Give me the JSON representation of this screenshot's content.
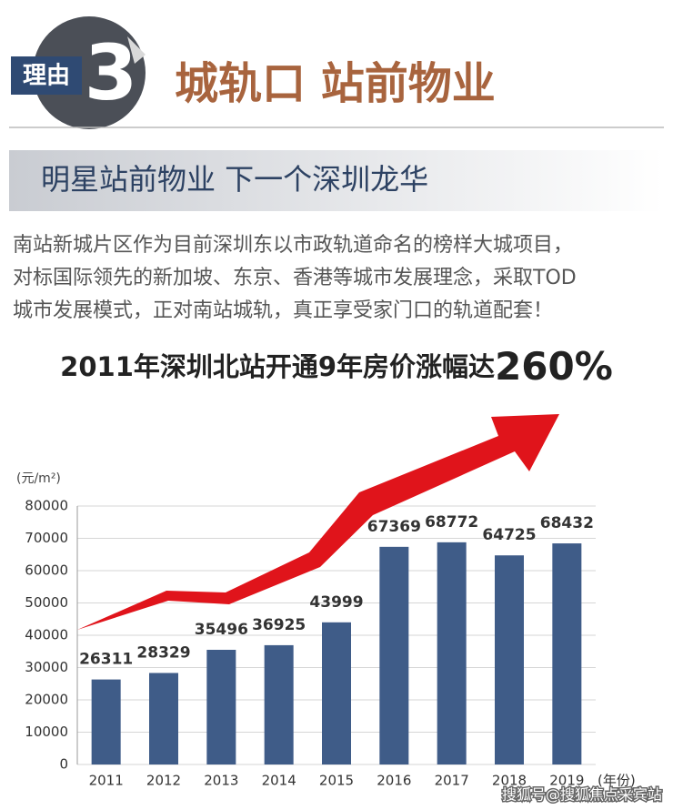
{
  "header": {
    "badge_label": "理由",
    "badge_number": "3",
    "title": "城轨口 站前物业",
    "subtitle": "明星站前物业  下一个深圳龙华"
  },
  "intro": [
    "南站新城片区作为目前深圳东以市政轨道命名的榜样大城项目，",
    "对标国际领先的新加坡、东京、香港等城市发展理念，采取TOD",
    "城市发展模式，正对南站城轨，真正享受家门口的轨道配套！"
  ],
  "chart_data": {
    "type": "bar",
    "title": "2011年深圳北站开通9年房价涨幅达",
    "title_highlight": "260%",
    "y_label": "(元/m²)",
    "x_label": "(年份)",
    "categories": [
      "2011",
      "2012",
      "2013",
      "2014",
      "2015",
      "2016",
      "2017",
      "2018",
      "2019"
    ],
    "values": [
      26311,
      28329,
      35496,
      36925,
      43999,
      67369,
      68772,
      64725,
      68432
    ],
    "color": "#3f5c88",
    "ylim": [
      0,
      80000
    ],
    "yticks": [
      0,
      10000,
      20000,
      30000,
      40000,
      50000,
      60000,
      70000,
      80000
    ],
    "grid": true
  },
  "watermark": "搜狐号@搜狐焦点采宾站"
}
